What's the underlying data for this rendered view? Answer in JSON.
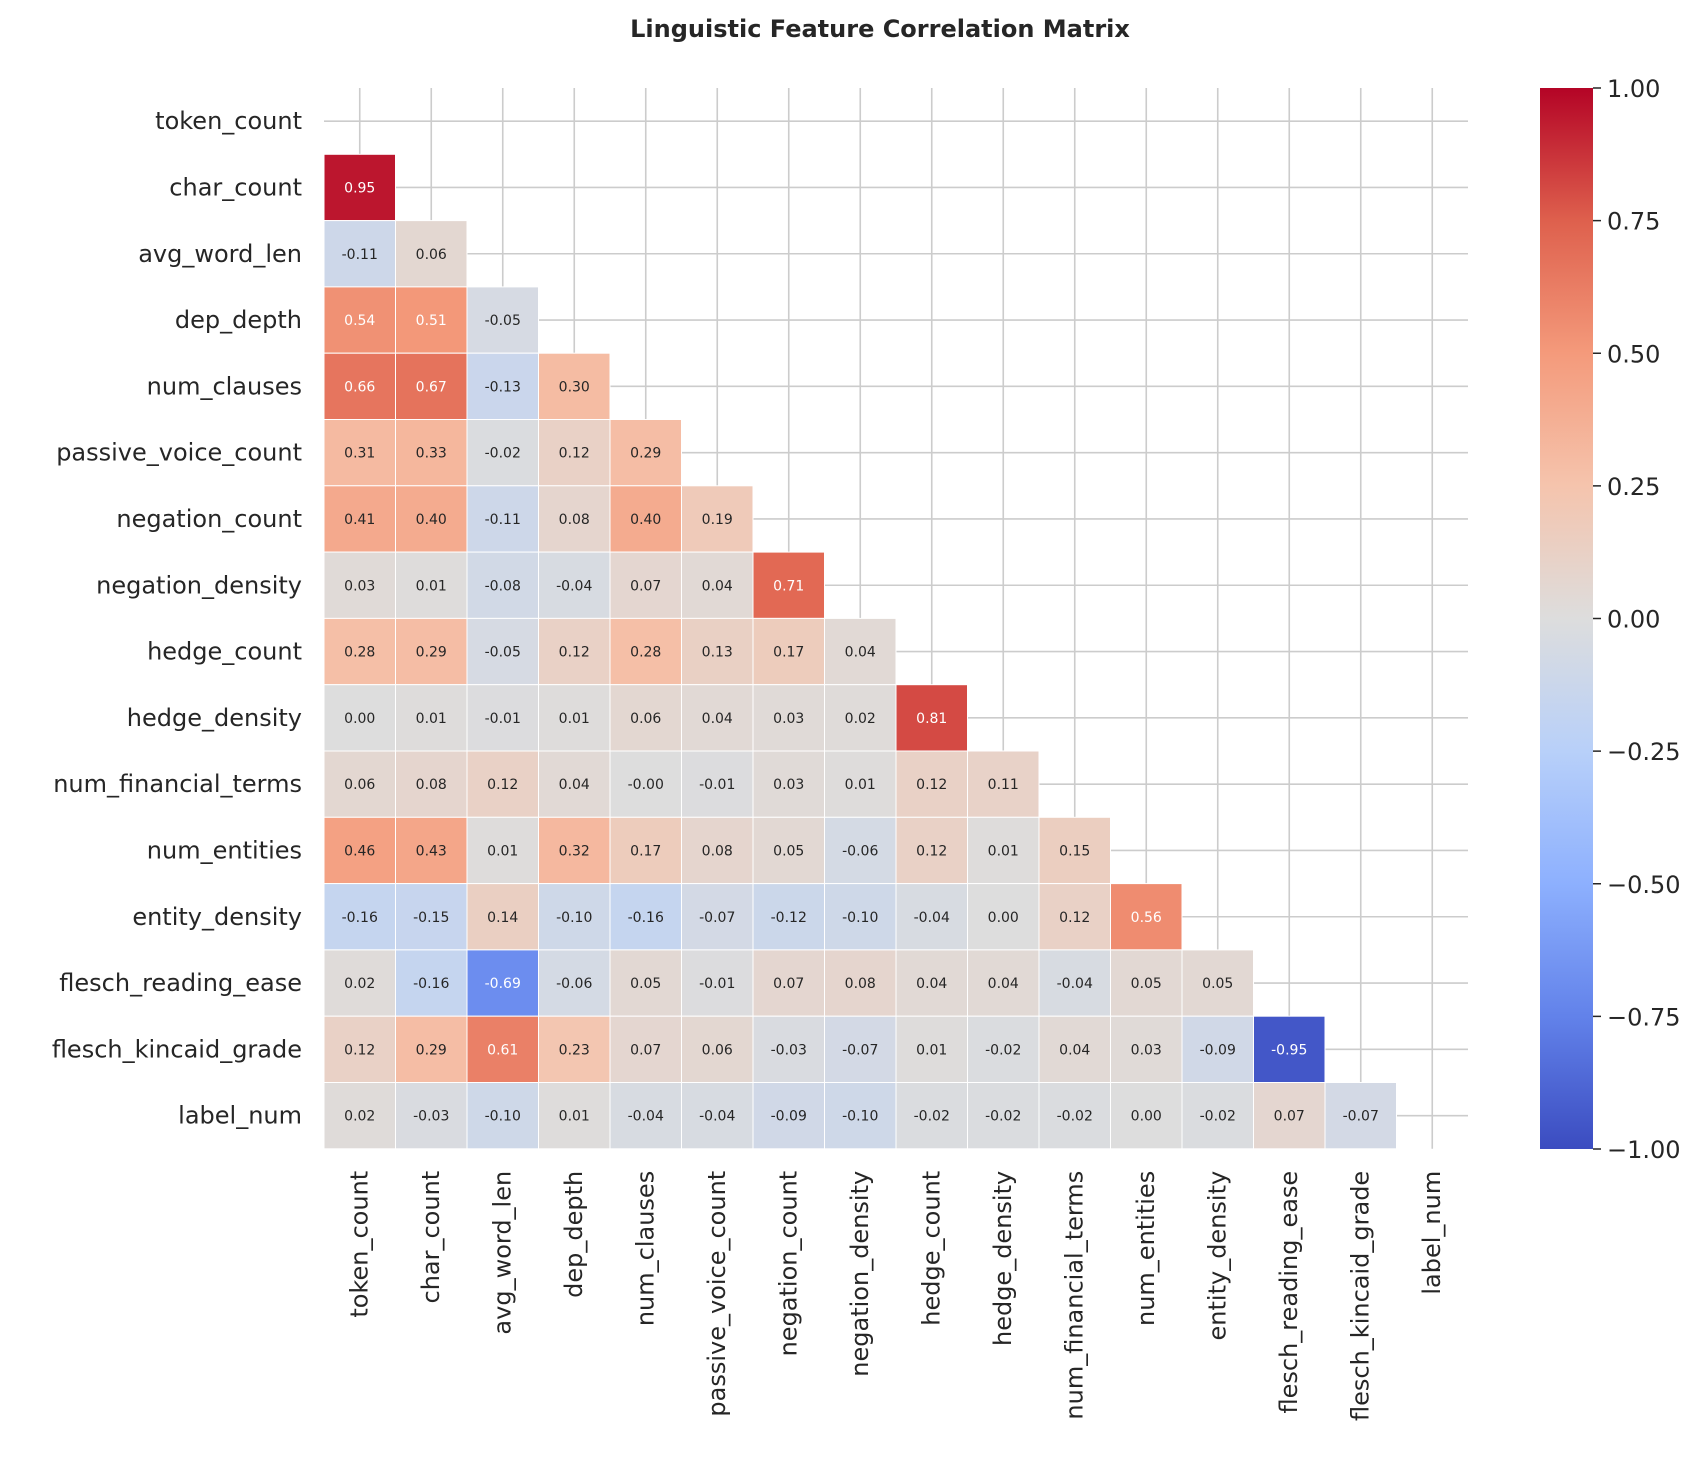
{
  "chart_data": {
    "type": "heatmap",
    "title": "Linguistic Feature Correlation Matrix",
    "xlabel": "",
    "ylabel": "",
    "colormap": "coolwarm",
    "mask": "upper-triangle-including-diagonal",
    "grid": true,
    "value_range": [
      -1,
      1
    ],
    "colorbar": {
      "position": "right",
      "ticks": [
        1.0,
        0.75,
        0.5,
        0.25,
        0.0,
        -0.25,
        -0.5,
        -0.75,
        -1.0
      ],
      "tick_labels": [
        "1.00",
        "0.75",
        "0.50",
        "0.25",
        "0.00",
        "−0.25",
        "−0.50",
        "−0.75",
        "−1.00"
      ]
    },
    "features": [
      "token_count",
      "char_count",
      "avg_word_len",
      "dep_depth",
      "num_clauses",
      "passive_voice_count",
      "negation_count",
      "negation_density",
      "hedge_count",
      "hedge_density",
      "num_financial_terms",
      "num_entities",
      "entity_density",
      "flesch_reading_ease",
      "flesch_kincaid_grade",
      "label_num"
    ],
    "values": [
      [],
      [
        0.95
      ],
      [
        -0.11,
        0.06
      ],
      [
        0.54,
        0.51,
        -0.05
      ],
      [
        0.66,
        0.67,
        -0.13,
        0.3
      ],
      [
        0.31,
        0.33,
        -0.02,
        0.12,
        0.29
      ],
      [
        0.41,
        0.4,
        -0.11,
        0.08,
        0.4,
        0.19
      ],
      [
        0.03,
        0.01,
        -0.08,
        -0.04,
        0.07,
        0.04,
        0.71
      ],
      [
        0.28,
        0.29,
        -0.05,
        0.12,
        0.28,
        0.13,
        0.17,
        0.04
      ],
      [
        0.0,
        0.01,
        -0.01,
        0.01,
        0.06,
        0.04,
        0.03,
        0.02,
        0.81
      ],
      [
        0.06,
        0.08,
        0.12,
        0.04,
        -0.0,
        -0.01,
        0.03,
        0.01,
        0.12,
        0.11
      ],
      [
        0.46,
        0.43,
        0.01,
        0.32,
        0.17,
        0.08,
        0.05,
        -0.06,
        0.12,
        0.01,
        0.15
      ],
      [
        -0.16,
        -0.15,
        0.14,
        -0.1,
        -0.16,
        -0.07,
        -0.12,
        -0.1,
        -0.04,
        0.0,
        0.12,
        0.56
      ],
      [
        0.02,
        -0.16,
        -0.69,
        -0.06,
        0.05,
        -0.01,
        0.07,
        0.08,
        0.04,
        0.04,
        -0.04,
        0.05,
        0.05
      ],
      [
        0.12,
        0.29,
        0.61,
        0.23,
        0.07,
        0.06,
        -0.03,
        -0.07,
        0.01,
        -0.02,
        0.04,
        0.03,
        -0.09,
        -0.95
      ],
      [
        0.02,
        -0.03,
        -0.1,
        0.01,
        -0.04,
        -0.04,
        -0.09,
        -0.1,
        -0.02,
        -0.02,
        -0.02,
        0.0,
        -0.02,
        0.07,
        -0.07
      ]
    ],
    "value_labels": [
      [],
      [
        "0.95"
      ],
      [
        "-0.11",
        "0.06"
      ],
      [
        "0.54",
        "0.51",
        "-0.05"
      ],
      [
        "0.66",
        "0.67",
        "-0.13",
        "0.30"
      ],
      [
        "0.31",
        "0.33",
        "-0.02",
        "0.12",
        "0.29"
      ],
      [
        "0.41",
        "0.40",
        "-0.11",
        "0.08",
        "0.40",
        "0.19"
      ],
      [
        "0.03",
        "0.01",
        "-0.08",
        "-0.04",
        "0.07",
        "0.04",
        "0.71"
      ],
      [
        "0.28",
        "0.29",
        "-0.05",
        "0.12",
        "0.28",
        "0.13",
        "0.17",
        "0.04"
      ],
      [
        "0.00",
        "0.01",
        "-0.01",
        "0.01",
        "0.06",
        "0.04",
        "0.03",
        "0.02",
        "0.81"
      ],
      [
        "0.06",
        "0.08",
        "0.12",
        "0.04",
        "-0.00",
        "-0.01",
        "0.03",
        "0.01",
        "0.12",
        "0.11"
      ],
      [
        "0.46",
        "0.43",
        "0.01",
        "0.32",
        "0.17",
        "0.08",
        "0.05",
        "-0.06",
        "0.12",
        "0.01",
        "0.15"
      ],
      [
        "-0.16",
        "-0.15",
        "0.14",
        "-0.10",
        "-0.16",
        "-0.07",
        "-0.12",
        "-0.10",
        "-0.04",
        "0.00",
        "0.12",
        "0.56"
      ],
      [
        "0.02",
        "-0.16",
        "-0.69",
        "-0.06",
        "0.05",
        "-0.01",
        "0.07",
        "0.08",
        "0.04",
        "0.04",
        "-0.04",
        "0.05",
        "0.05"
      ],
      [
        "0.12",
        "0.29",
        "0.61",
        "0.23",
        "0.07",
        "0.06",
        "-0.03",
        "-0.07",
        "0.01",
        "-0.02",
        "0.04",
        "0.03",
        "-0.09",
        "-0.95"
      ],
      [
        "0.02",
        "-0.03",
        "-0.10",
        "0.01",
        "-0.04",
        "-0.04",
        "-0.09",
        "-0.10",
        "-0.02",
        "-0.02",
        "-0.02",
        "0.00",
        "-0.02",
        "0.07",
        "-0.07"
      ]
    ]
  }
}
